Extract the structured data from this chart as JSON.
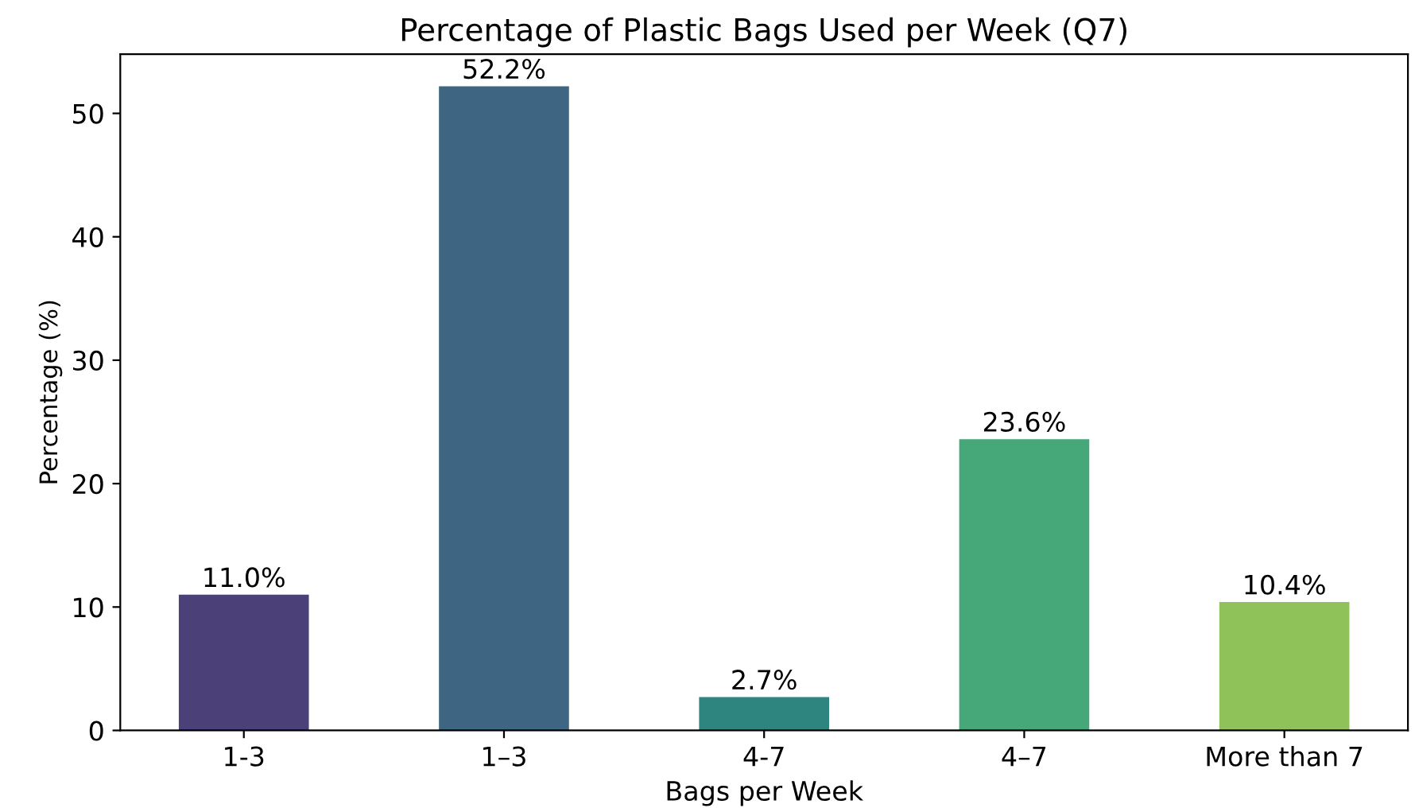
{
  "chart_data": {
    "type": "bar",
    "title": "Percentage of Plastic Bags Used per Week (Q7)",
    "xlabel": "Bags per Week",
    "ylabel": "Percentage (%)",
    "categories": [
      "1-3",
      "1–3",
      "4-7",
      "4–7",
      "More than 7"
    ],
    "values": [
      11.0,
      52.2,
      2.7,
      23.6,
      10.4
    ],
    "value_labels": [
      "11.0%",
      "52.2%",
      "2.7%",
      "23.6%",
      "10.4%"
    ],
    "colors": [
      "#4c4078",
      "#3e6682",
      "#2e8580",
      "#46a878",
      "#8fc35a"
    ],
    "ylim": [
      0,
      54.8
    ],
    "yticks": [
      0,
      10,
      20,
      30,
      40,
      50
    ],
    "grid": false,
    "legend": false
  }
}
